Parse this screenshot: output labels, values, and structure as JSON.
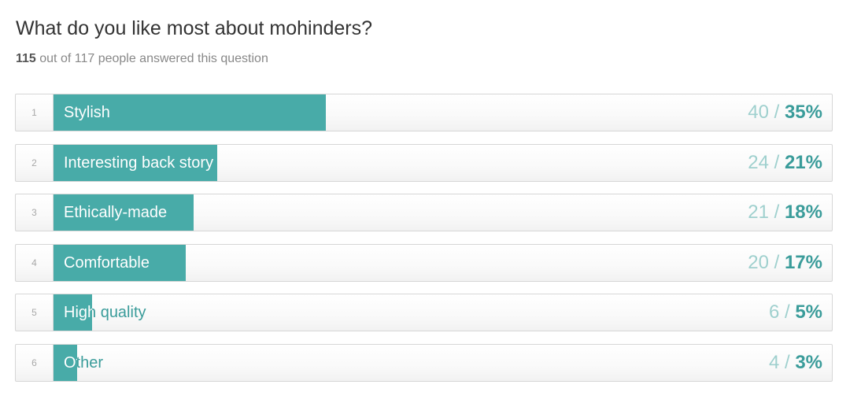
{
  "survey": {
    "question": "What do you like most about mohinders?",
    "answered_count": "115",
    "answered_rest": " out of 117 people answered this question"
  },
  "colors": {
    "bar": "#48aba8",
    "accent_text": "#3a9c9a",
    "count_text": "#9fd0ce"
  },
  "chart_data": {
    "type": "bar",
    "orientation": "horizontal",
    "categories": [
      "Stylish",
      "Interesting back story",
      "Ethically-made",
      "Comfortable",
      "High quality",
      "Other"
    ],
    "ranks": [
      "1",
      "2",
      "3",
      "4",
      "5",
      "6"
    ],
    "values": [
      40,
      24,
      21,
      20,
      6,
      4
    ],
    "percent_labels": [
      "35%",
      "21%",
      "18%",
      "17%",
      "5%",
      "3%"
    ],
    "xlim": [
      0,
      100
    ],
    "grid": false,
    "legend": "none"
  }
}
